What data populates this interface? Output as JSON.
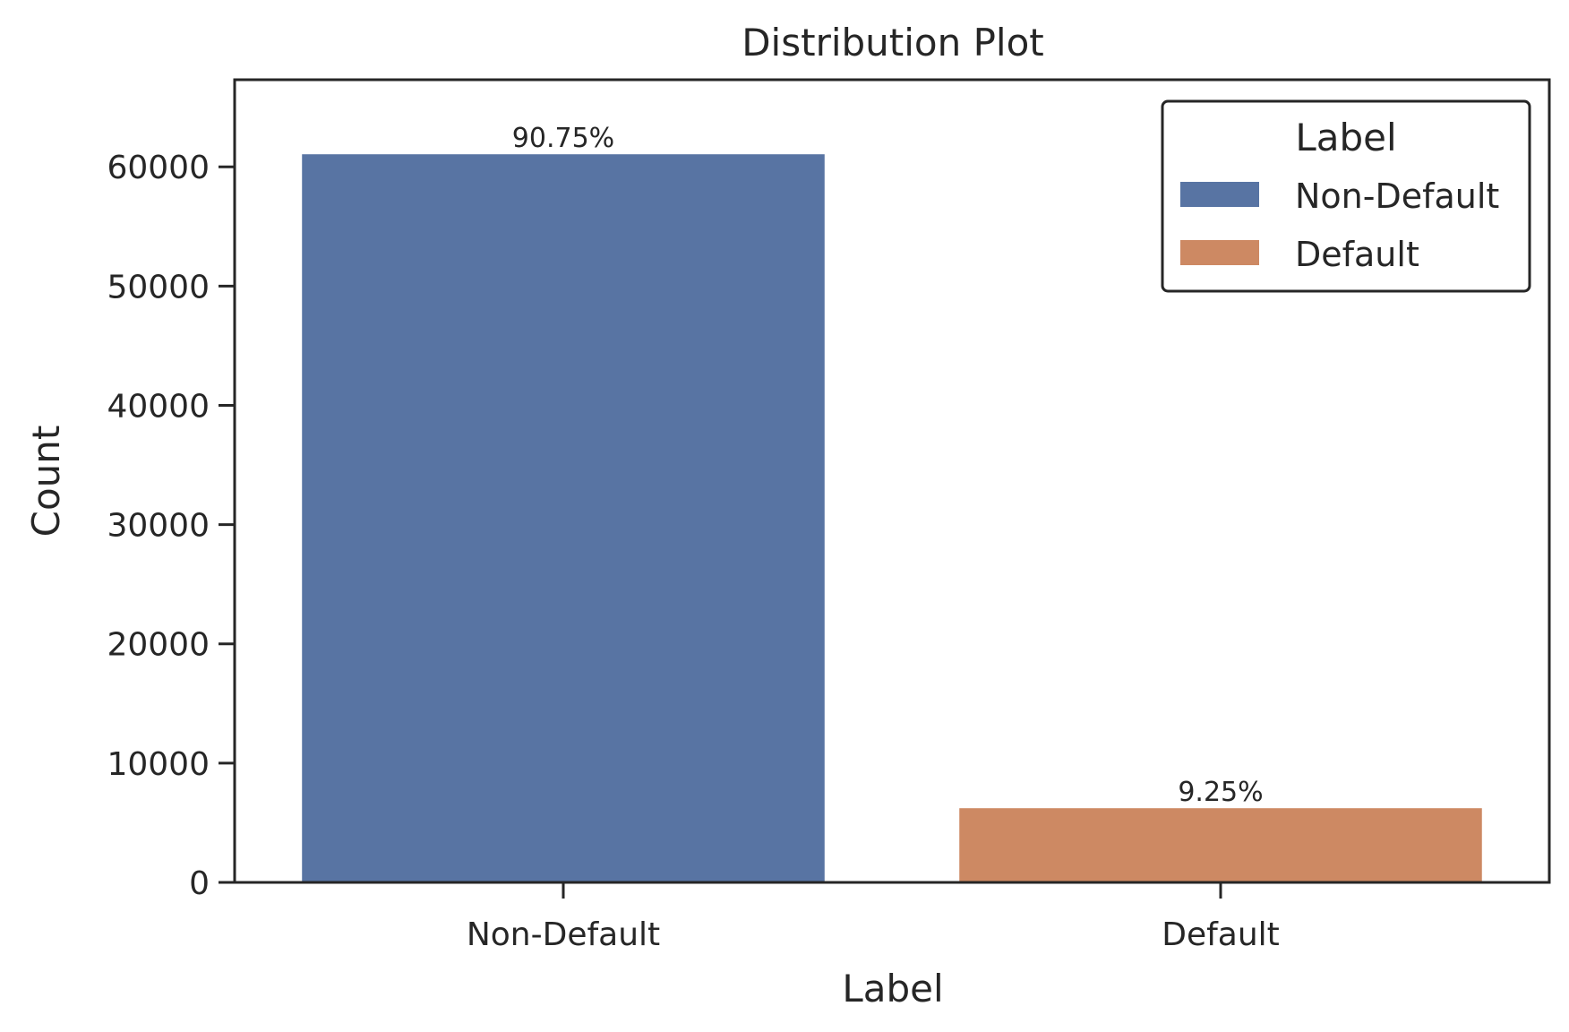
{
  "chart_data": {
    "type": "bar",
    "title": "Distribution Plot",
    "xlabel": "Label",
    "ylabel": "Count",
    "categories": [
      "Non-Default",
      "Default"
    ],
    "values": [
      61050,
      6220
    ],
    "bar_labels": [
      "90.75%",
      "9.25%"
    ],
    "colors": [
      "#5874a3",
      "#cd8963"
    ],
    "ylim": [
      0,
      67300
    ],
    "yticks": [
      0,
      10000,
      20000,
      30000,
      40000,
      50000,
      60000
    ],
    "ytick_labels": [
      "0",
      "10000",
      "20000",
      "30000",
      "40000",
      "50000",
      "60000"
    ],
    "grid": false,
    "legend": {
      "title": "Label",
      "placement": "top-right",
      "entries": [
        "Non-Default",
        "Default"
      ]
    }
  }
}
